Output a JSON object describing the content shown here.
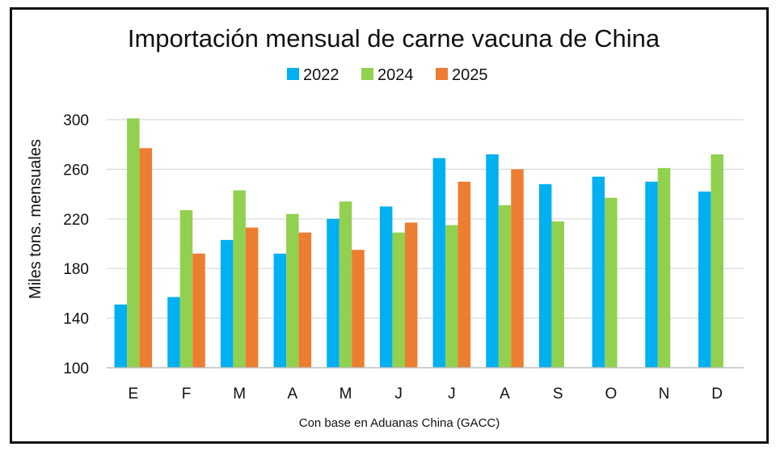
{
  "chart_data": {
    "type": "bar",
    "title": "Importación mensual de carne vacuna de China",
    "ylabel": "Miles tons. mensuales",
    "xlabel": "",
    "source_note": "Con base en Aduanas China (GACC)",
    "categories": [
      "E",
      "F",
      "M",
      "A",
      "M",
      "J",
      "J",
      "A",
      "S",
      "O",
      "N",
      "D"
    ],
    "ylim": [
      100,
      300
    ],
    "yticks": [
      100,
      140,
      180,
      220,
      260,
      300
    ],
    "grid": true,
    "legend_position": "top",
    "series": [
      {
        "name": "2022",
        "color": "#00b0f0",
        "values": [
          151,
          157,
          203,
          192,
          220,
          230,
          269,
          272,
          248,
          254,
          250,
          242
        ]
      },
      {
        "name": "2024",
        "color": "#92d050",
        "values": [
          301,
          227,
          243,
          224,
          234,
          209,
          215,
          231,
          218,
          237,
          261,
          272
        ]
      },
      {
        "name": "2025",
        "color": "#ed7d31",
        "values": [
          277,
          192,
          213,
          209,
          195,
          217,
          250,
          260,
          null,
          null,
          null,
          null
        ]
      }
    ]
  }
}
